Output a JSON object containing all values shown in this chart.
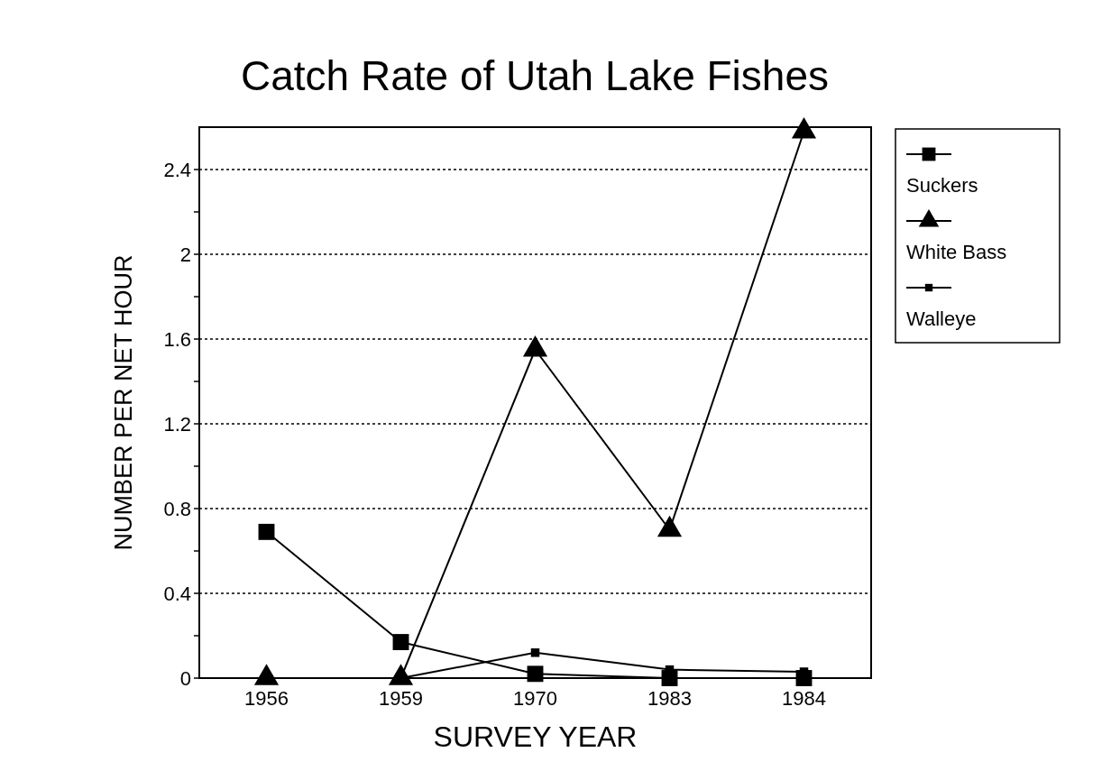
{
  "chart_data": {
    "type": "line",
    "title": "Catch Rate of Utah Lake Fishes",
    "xlabel": "SURVEY YEAR",
    "ylabel": "NUMBER PER NET HOUR",
    "categories": [
      "1956",
      "1959",
      "1970",
      "1983",
      "1984"
    ],
    "series": [
      {
        "name": "Suckers",
        "color": "#000000",
        "marker": "square",
        "values": [
          0.69,
          0.17,
          0.02,
          0,
          0
        ]
      },
      {
        "name": "White Bass",
        "color": "#000000",
        "marker": "triangle",
        "values": [
          0,
          0,
          1.55,
          0.7,
          2.58
        ]
      },
      {
        "name": "Walleye",
        "color": "#000000",
        "marker": "square",
        "values": [
          null,
          0,
          0.12,
          0.04,
          0.03
        ]
      }
    ],
    "ylim": [
      0,
      2.6
    ],
    "yticks": [
      0,
      {
        "value": 0.2,
        "label": null
      },
      0.4,
      {
        "value": 0.6,
        "label": null
      },
      0.8,
      {
        "value": 1,
        "label": null
      },
      1.2,
      {
        "value": 1.4,
        "label": null
      },
      1.6,
      {
        "value": 1.8,
        "label": null
      },
      2,
      {
        "value": 2.2,
        "label": null
      },
      2.4
    ],
    "grid": "y",
    "legend": "right",
    "line_style": "solid"
  }
}
